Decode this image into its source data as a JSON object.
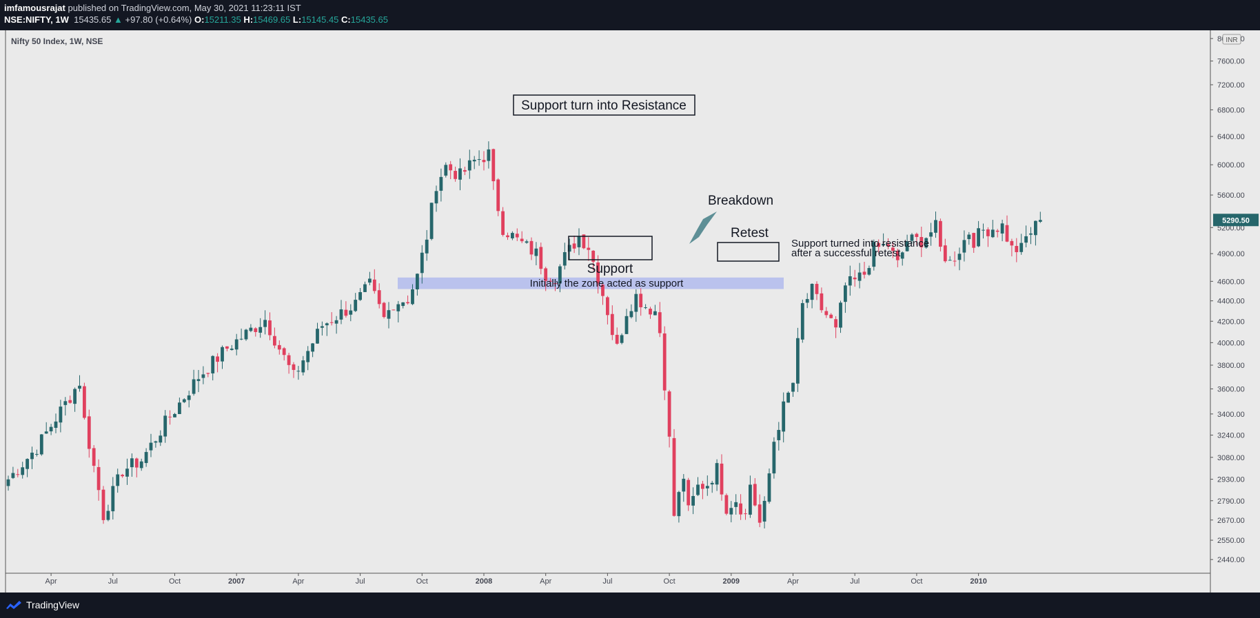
{
  "header": {
    "author": "imfamousrajat",
    "published_text": "published on TradingView.com, May 30, 2021 11:23:11 IST",
    "symbol": "NSE:NIFTY, 1W",
    "price": "15435.65",
    "change": "+97.80 (+0.64%)",
    "open_label": "O:",
    "open": "15211.35",
    "high_label": "H:",
    "high": "15469.65",
    "low_label": "L:",
    "low": "15145.45",
    "close_label": "C:",
    "close": "15435.65"
  },
  "chart_title": "Nifty 50 Index, 1W, NSE",
  "currency": "INR",
  "last_price_tag": "5290.50",
  "annotations": {
    "title_box": "Support turn into Resistance",
    "breakdown": "Breakdown",
    "retest": "Retest",
    "support": "Support",
    "support_note": "Initially the zone acted as support",
    "resistance_note_1": "Support turned into resistance",
    "resistance_note_2": "after a successful retest"
  },
  "footer": {
    "brand": "TradingView"
  },
  "colors": {
    "up": "#26666b",
    "down": "#e0405e",
    "zone": "#aab4ee",
    "background": "#eaeaea"
  },
  "chart_data": {
    "type": "candlestick",
    "title": "Nifty 50 Index, 1W, NSE",
    "y_scale": "log",
    "ylim": [
      2380,
      8100
    ],
    "y_ticks": [
      8000,
      7600,
      7200,
      6800,
      6400,
      6000,
      5600,
      5200,
      4900,
      4600,
      4400,
      4200,
      4000,
      3800,
      3600,
      3400,
      3240,
      3080,
      2930,
      2790,
      2670,
      2550,
      2440
    ],
    "y_tick_labels": [
      "8000.00",
      "7600.00",
      "7200.00",
      "6800.00",
      "6400.00",
      "6000.00",
      "5600.00",
      "5200.00",
      "4900.00",
      "4600.00",
      "4400.00",
      "4200.00",
      "4000.00",
      "3800.00",
      "3600.00",
      "3400.00",
      "3240.00",
      "3080.00",
      "2930.00",
      "2790.00",
      "2670.00",
      "2550.00",
      "2440.00"
    ],
    "x_ticks": [
      {
        "label": "Apr",
        "bar": 9
      },
      {
        "label": "Jul",
        "bar": 22
      },
      {
        "label": "Oct",
        "bar": 35
      },
      {
        "label": "2007",
        "bar": 48
      },
      {
        "label": "Apr",
        "bar": 61
      },
      {
        "label": "Jul",
        "bar": 74
      },
      {
        "label": "Oct",
        "bar": 87
      },
      {
        "label": "2008",
        "bar": 100
      },
      {
        "label": "Apr",
        "bar": 113
      },
      {
        "label": "Jul",
        "bar": 126
      },
      {
        "label": "Oct",
        "bar": 139
      },
      {
        "label": "2009",
        "bar": 152
      },
      {
        "label": "Apr",
        "bar": 165
      },
      {
        "label": "Jul",
        "bar": 178
      },
      {
        "label": "Oct",
        "bar": 191
      },
      {
        "label": "2010",
        "bar": 204
      }
    ],
    "support_zone": [
      4520,
      4640
    ],
    "last_price": 5290.5,
    "waypoints": [
      [
        0,
        2930
      ],
      [
        6,
        3150
      ],
      [
        15,
        3660
      ],
      [
        16,
        3350
      ],
      [
        19,
        2860
      ],
      [
        20,
        2700
      ],
      [
        24,
        2990
      ],
      [
        28,
        3060
      ],
      [
        33,
        3330
      ],
      [
        40,
        3700
      ],
      [
        46,
        3950
      ],
      [
        54,
        4220
      ],
      [
        57,
        3950
      ],
      [
        60,
        3700
      ],
      [
        62,
        3850
      ],
      [
        66,
        4160
      ],
      [
        73,
        4370
      ],
      [
        76,
        4560
      ],
      [
        79,
        4220
      ],
      [
        81,
        4380
      ],
      [
        84,
        4420
      ],
      [
        86,
        4650
      ],
      [
        88,
        5100
      ],
      [
        90,
        5750
      ],
      [
        92,
        5980
      ],
      [
        95,
        5850
      ],
      [
        98,
        6050
      ],
      [
        101,
        6150
      ],
      [
        102,
        5700
      ],
      [
        104,
        5200
      ],
      [
        107,
        5050
      ],
      [
        111,
        4900
      ],
      [
        113,
        4680
      ],
      [
        115,
        4650
      ],
      [
        117,
        4860
      ],
      [
        120,
        5100
      ],
      [
        122,
        4980
      ],
      [
        124,
        4650
      ],
      [
        126,
        4300
      ],
      [
        127,
        4100
      ],
      [
        128,
        3950
      ],
      [
        130,
        4300
      ],
      [
        132,
        4450
      ],
      [
        134,
        4350
      ],
      [
        136,
        4300
      ],
      [
        137,
        4100
      ],
      [
        138,
        3650
      ],
      [
        139,
        3200
      ],
      [
        140,
        2700
      ],
      [
        142,
        2950
      ],
      [
        143,
        2720
      ],
      [
        145,
        2880
      ],
      [
        147,
        2900
      ],
      [
        149,
        3000
      ],
      [
        151,
        2750
      ],
      [
        153,
        2800
      ],
      [
        155,
        2700
      ],
      [
        156,
        2900
      ],
      [
        158,
        2650
      ],
      [
        159,
        2750
      ],
      [
        161,
        3200
      ],
      [
        163,
        3450
      ],
      [
        165,
        3650
      ],
      [
        167,
        4350
      ],
      [
        169,
        4500
      ],
      [
        171,
        4320
      ],
      [
        173,
        4200
      ],
      [
        174,
        4100
      ],
      [
        176,
        4550
      ],
      [
        178,
        4600
      ],
      [
        180,
        4680
      ],
      [
        182,
        4950
      ],
      [
        185,
        5000
      ],
      [
        187,
        4780
      ],
      [
        189,
        5050
      ],
      [
        192,
        5050
      ],
      [
        195,
        5200
      ],
      [
        196,
        4950
      ],
      [
        198,
        4800
      ],
      [
        200,
        4950
      ],
      [
        202,
        5150
      ],
      [
        203,
        5050
      ],
      [
        205,
        5170
      ],
      [
        209,
        5220
      ],
      [
        211,
        4950
      ],
      [
        213,
        4950
      ],
      [
        214,
        5080
      ],
      [
        217,
        5290
      ]
    ]
  }
}
